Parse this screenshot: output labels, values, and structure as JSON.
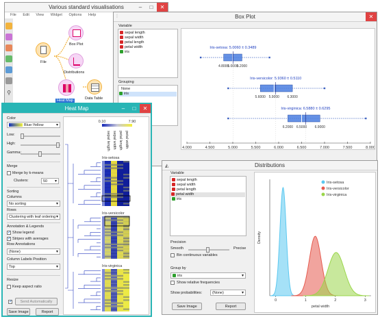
{
  "canvas_window": {
    "title": "Various standard visualisations",
    "menu": [
      "File",
      "Edit",
      "View",
      "Widget",
      "Options",
      "Help"
    ],
    "nodes": {
      "file": "File",
      "boxplot": "Box Plot",
      "distributions": "Distributions",
      "heatmap": "Heat Map",
      "datatable": "Data Table"
    }
  },
  "boxplot_window": {
    "title": "Box Plot",
    "variable_label": "Variable",
    "variables": [
      {
        "name": "sepal length",
        "type": "num"
      },
      {
        "name": "sepal width",
        "type": "num"
      },
      {
        "name": "petal length",
        "type": "num"
      },
      {
        "name": "petal width",
        "type": "num"
      },
      {
        "name": "iris",
        "type": "cat"
      }
    ],
    "grouping_label": "Grouping",
    "grouping": [
      {
        "name": "None",
        "type": ""
      },
      {
        "name": "iris",
        "type": "cat"
      }
    ],
    "groups": [
      {
        "name": "Iris-setosa",
        "stat": "5.0060 ± 0.3489",
        "min": 4.3,
        "q1": 4.8,
        "median": 5.0,
        "mean": 5.006,
        "q3": 5.2,
        "max": 5.8,
        "labels": [
          "4.8000",
          "5.0000",
          "5.2000"
        ]
      },
      {
        "name": "Iris-versicolor",
        "stat": "5.9360 ± 0.5110",
        "min": 4.9,
        "q1": 5.6,
        "median": 5.9,
        "mean": 5.936,
        "q3": 6.3,
        "max": 7.0,
        "labels": [
          "5.6000",
          "5.9000",
          "6.3000"
        ]
      },
      {
        "name": "Iris-virginica",
        "stat": "6.5880 ± 0.6295",
        "min": 4.9,
        "q1": 6.2,
        "median": 6.5,
        "mean": 6.588,
        "q3": 6.9,
        "max": 7.9,
        "labels": [
          "6.2000",
          "6.5000",
          "6.9000"
        ]
      }
    ],
    "axis_ticks": [
      "4.000",
      "4.500",
      "5.000",
      "5.500",
      "6.000",
      "6.500",
      "7.000",
      "7.500",
      "8.000"
    ],
    "colors": {
      "box": "#4a7ee0",
      "whisker": "#3b5fc0",
      "stat_text": "#2040c0"
    }
  },
  "distributions_window": {
    "title": "Distributions",
    "variable_label": "Variable",
    "variables": [
      {
        "name": "sepal length",
        "type": "num"
      },
      {
        "name": "sepal width",
        "type": "num"
      },
      {
        "name": "petal length",
        "type": "num"
      },
      {
        "name": "petal width",
        "type": "num"
      },
      {
        "name": "iris",
        "type": "cat"
      }
    ],
    "selected_variable": "petal width",
    "precision_label": "Precision",
    "smooth_label": "Smooth",
    "precise_label": "Precise",
    "bin_label": "Bin continuous variables",
    "groupby_label": "Group by",
    "groupby_value": "iris",
    "relfreq_label": "Show relative frequencies",
    "showprob_label": "Show probabilities:",
    "showprob_value": "(None)",
    "save_label": "Save Image",
    "report_label": "Report",
    "chart_data": {
      "type": "area",
      "xlabel": "petal width",
      "ylabel": "Density",
      "xlim": [
        -0.2,
        3.2
      ],
      "x_ticks": [
        "0",
        "1",
        "2",
        "3"
      ],
      "legend_position": "top-right",
      "series": [
        {
          "name": "Iris-setosa",
          "mean": 0.246,
          "sd": 0.105,
          "peak": 1.0,
          "color": "#5bc8f0"
        },
        {
          "name": "Iris-versicolor",
          "mean": 1.326,
          "sd": 0.198,
          "peak": 0.55,
          "color": "#e65a4e"
        },
        {
          "name": "Iris-virginica",
          "mean": 2.026,
          "sd": 0.275,
          "peak": 0.4,
          "color": "#9ad64a"
        }
      ]
    }
  },
  "heatmap_window": {
    "title": "Heat Map",
    "color_label": "Color",
    "color_value": "Blue-Yellow",
    "low_label": "Low:",
    "high_label": "High:",
    "gamma_label": "Gamma:",
    "merge_label": "Merge",
    "merge_kmeans_label": "Merge by k-means",
    "clusters_label": "Clusters:",
    "clusters_value": "50",
    "sorting_label": "Sorting",
    "columns_label": "Columns",
    "columns_value": "No sorting",
    "rows_label": "Rows",
    "rows_value": "Clustering with leaf ordering",
    "annot_label": "Annotation & Legends",
    "show_legend_label": "Show legend",
    "stripes_label": "Stripes with averages",
    "row_annot_label": "Row Annotations",
    "row_annot_value": "(None)",
    "col_pos_label": "Column Labels Position",
    "col_pos_value": "Top",
    "resize_label": "Resize",
    "keep_aspect_label": "Keep aspect ratio",
    "send_label": "Send Automatically",
    "save_label": "Save Image",
    "report_label": "Report",
    "legend_min": "0.10",
    "legend_max": "7.90",
    "column_labels": [
      "sepal length",
      "sepal width",
      "petal length",
      "petal width"
    ],
    "group_labels": [
      "Iris-setosa",
      "Iris-versicolor",
      "Iris-virginica"
    ]
  }
}
